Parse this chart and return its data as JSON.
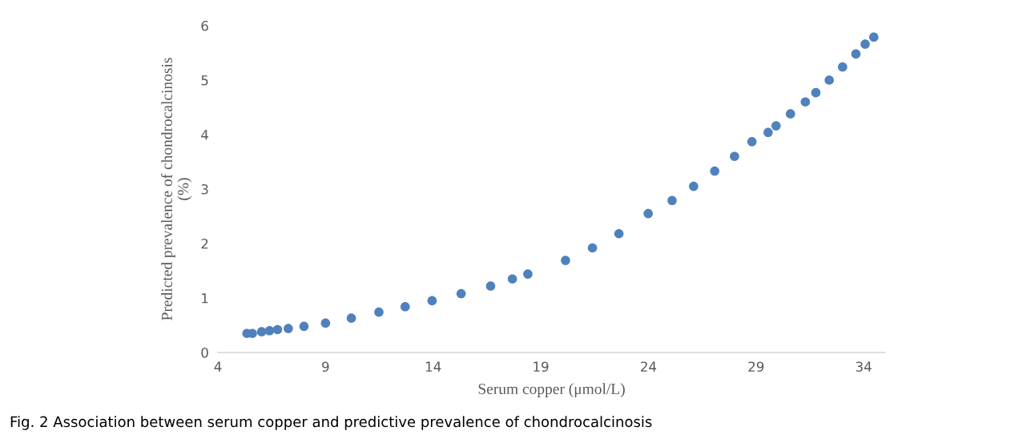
{
  "chart_data": {
    "type": "scatter",
    "xlabel": "Serum copper (μmol/L)",
    "ylabel": "Predicted prevalence of chondrocalcinosis\n(%)",
    "x": [
      5.35,
      5.6,
      6.03,
      6.4,
      6.77,
      7.27,
      8.0,
      9.0,
      10.2,
      11.48,
      12.7,
      13.95,
      15.3,
      16.67,
      17.68,
      18.4,
      20.15,
      21.4,
      22.63,
      23.99,
      25.1,
      26.1,
      27.08,
      28.0,
      28.81,
      29.56,
      29.93,
      30.6,
      31.29,
      31.78,
      32.4,
      33.02,
      33.64,
      34.07,
      34.47
    ],
    "series": [
      {
        "color": "#4f81bd",
        "values": [
          0.35,
          0.35,
          0.38,
          0.4,
          0.42,
          0.44,
          0.48,
          0.54,
          0.63,
          0.74,
          0.84,
          0.95,
          1.08,
          1.22,
          1.35,
          1.44,
          1.69,
          1.92,
          2.18,
          2.55,
          2.79,
          3.05,
          3.33,
          3.6,
          3.87,
          4.04,
          4.16,
          4.38,
          4.6,
          4.77,
          5.0,
          5.24,
          5.48,
          5.66,
          5.79
        ]
      }
    ],
    "xlim": [
      4,
      35
    ],
    "xticks": [
      4,
      9,
      14,
      19,
      24,
      29,
      34
    ],
    "ylim": [
      0,
      6
    ],
    "yticks": [
      0,
      1,
      2,
      3,
      4,
      5,
      6
    ],
    "grid": false,
    "legend": false,
    "marker": "circle",
    "annotations": [
      "Fig. 2 Association between serum copper and predictive prevalence of chondrocalcinosis"
    ]
  }
}
